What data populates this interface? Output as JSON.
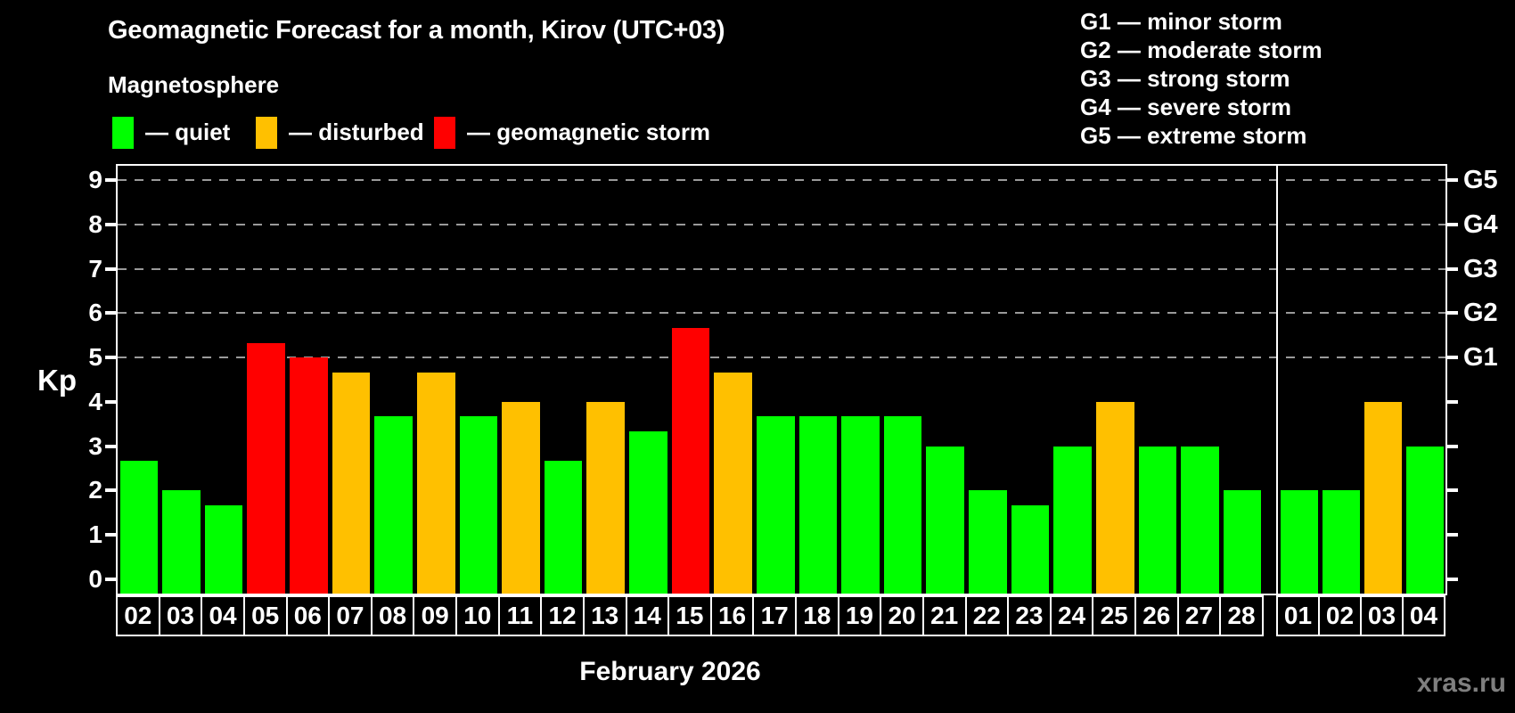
{
  "title": "Geomagnetic Forecast for a month, Kirov (UTC+03)",
  "subtitle": "Magnetosphere",
  "legend": {
    "items": [
      {
        "id": "quiet",
        "label": "— quiet",
        "color": "#00ff00"
      },
      {
        "id": "disturbed",
        "label": "— disturbed",
        "color": "#ffc000"
      },
      {
        "id": "storm",
        "label": "— geomagnetic storm",
        "color": "#ff0000"
      }
    ]
  },
  "g_legend": [
    {
      "label": "G1 — minor storm"
    },
    {
      "label": "G2 — moderate storm"
    },
    {
      "label": "G3 — strong storm"
    },
    {
      "label": "G4 — severe storm"
    },
    {
      "label": "G5 — extreme storm"
    }
  ],
  "watermark": "xras.ru",
  "colors": {
    "background": "#000000",
    "axis": "#ffffff",
    "grid": "#9a9a9a",
    "watermark": "#7f7f7f"
  },
  "chart_data": {
    "type": "bar",
    "title": "Geomagnetic Forecast for a month, Kirov (UTC+03)",
    "ylabel": "Kp",
    "xlabel": "February 2026",
    "ylim": [
      0,
      9
    ],
    "grid": "dashed horizontal at Kp 5-9 only",
    "y_ticks": [
      0,
      1,
      2,
      3,
      4,
      5,
      6,
      7,
      8,
      9
    ],
    "g_levels": [
      {
        "label": "G1",
        "kp": 5
      },
      {
        "label": "G2",
        "kp": 6
      },
      {
        "label": "G3",
        "kp": 7
      },
      {
        "label": "G4",
        "kp": 8
      },
      {
        "label": "G5",
        "kp": 9
      }
    ],
    "grid_kp": [
      5,
      6,
      7,
      8,
      9
    ],
    "status_colors": {
      "quiet": "#00ff00",
      "disturbed": "#ffc000",
      "storm": "#ff0000"
    },
    "sections": [
      {
        "name": "february",
        "bars": [
          {
            "day": "02",
            "kp": 2.67,
            "status": "quiet"
          },
          {
            "day": "03",
            "kp": 2.0,
            "status": "quiet"
          },
          {
            "day": "04",
            "kp": 1.67,
            "status": "quiet"
          },
          {
            "day": "05",
            "kp": 5.33,
            "status": "storm"
          },
          {
            "day": "06",
            "kp": 5.0,
            "status": "storm"
          },
          {
            "day": "07",
            "kp": 4.67,
            "status": "disturbed"
          },
          {
            "day": "08",
            "kp": 3.67,
            "status": "quiet"
          },
          {
            "day": "09",
            "kp": 4.67,
            "status": "disturbed"
          },
          {
            "day": "10",
            "kp": 3.67,
            "status": "quiet"
          },
          {
            "day": "11",
            "kp": 4.0,
            "status": "disturbed"
          },
          {
            "day": "12",
            "kp": 2.67,
            "status": "quiet"
          },
          {
            "day": "13",
            "kp": 4.0,
            "status": "disturbed"
          },
          {
            "day": "14",
            "kp": 3.33,
            "status": "quiet"
          },
          {
            "day": "15",
            "kp": 5.67,
            "status": "storm"
          },
          {
            "day": "16",
            "kp": 4.67,
            "status": "disturbed"
          },
          {
            "day": "17",
            "kp": 3.67,
            "status": "quiet"
          },
          {
            "day": "18",
            "kp": 3.67,
            "status": "quiet"
          },
          {
            "day": "19",
            "kp": 3.67,
            "status": "quiet"
          },
          {
            "day": "20",
            "kp": 3.67,
            "status": "quiet"
          },
          {
            "day": "21",
            "kp": 3.0,
            "status": "quiet"
          },
          {
            "day": "22",
            "kp": 2.0,
            "status": "quiet"
          },
          {
            "day": "23",
            "kp": 1.67,
            "status": "quiet"
          },
          {
            "day": "24",
            "kp": 3.0,
            "status": "quiet"
          },
          {
            "day": "25",
            "kp": 4.0,
            "status": "disturbed"
          },
          {
            "day": "26",
            "kp": 3.0,
            "status": "quiet"
          },
          {
            "day": "27",
            "kp": 3.0,
            "status": "quiet"
          },
          {
            "day": "28",
            "kp": 2.0,
            "status": "quiet"
          }
        ]
      },
      {
        "name": "march",
        "bars": [
          {
            "day": "01",
            "kp": 2.0,
            "status": "quiet"
          },
          {
            "day": "02",
            "kp": 2.0,
            "status": "quiet"
          },
          {
            "day": "03",
            "kp": 4.0,
            "status": "disturbed"
          },
          {
            "day": "04",
            "kp": 3.0,
            "status": "quiet"
          }
        ]
      }
    ]
  }
}
